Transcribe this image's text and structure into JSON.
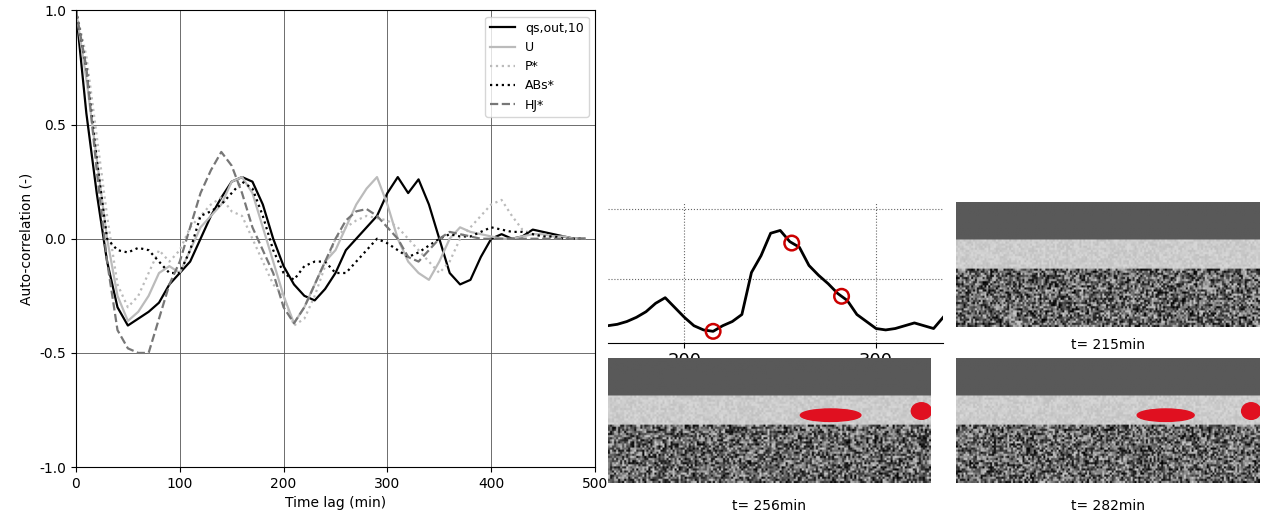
{
  "chart_data": [
    {
      "type": "line",
      "x_label": "Time lag (min)",
      "y_label": "Auto-correlation (-)",
      "xlim": [
        0,
        500
      ],
      "xticks": [
        0,
        100,
        200,
        300,
        400,
        500
      ],
      "ylim": [
        -1,
        1
      ],
      "yticks": [
        {
          "value": -1,
          "label": "-1.0"
        },
        {
          "value": -0.5,
          "label": "-0.5"
        },
        {
          "value": 0,
          "label": "0.0"
        },
        {
          "value": 0.5,
          "label": "0.5"
        },
        {
          "value": 1,
          "label": "1.0"
        }
      ],
      "grid": true,
      "legend": "upper right",
      "x": [
        0,
        10,
        20,
        30,
        40,
        50,
        60,
        70,
        80,
        90,
        100,
        110,
        120,
        130,
        140,
        150,
        160,
        170,
        180,
        190,
        200,
        210,
        220,
        230,
        240,
        250,
        260,
        270,
        280,
        290,
        300,
        310,
        320,
        330,
        340,
        350,
        360,
        370,
        380,
        390,
        400,
        410,
        420,
        430,
        440,
        450,
        460,
        470,
        480,
        490
      ],
      "series": [
        {
          "name": "qs,out,10",
          "color": "#000000",
          "line_style": "solid",
          "values": [
            1.0,
            0.55,
            0.2,
            -0.1,
            -0.3,
            -0.38,
            -0.35,
            -0.32,
            -0.28,
            -0.2,
            -0.15,
            -0.1,
            0.0,
            0.1,
            0.18,
            0.25,
            0.27,
            0.25,
            0.15,
            0.0,
            -0.12,
            -0.2,
            -0.25,
            -0.27,
            -0.22,
            -0.15,
            -0.05,
            0.0,
            0.05,
            0.1,
            0.2,
            0.27,
            0.2,
            0.26,
            0.15,
            0.0,
            -0.15,
            -0.2,
            -0.18,
            -0.08,
            0.0,
            0.02,
            0.0,
            0.01,
            0.04,
            0.03,
            0.02,
            0.01,
            0.0,
            0.0
          ]
        },
        {
          "name": "U",
          "color": "#bbbbbb",
          "line_style": "solid",
          "values": [
            1.0,
            0.7,
            0.35,
            0.0,
            -0.25,
            -0.36,
            -0.32,
            -0.25,
            -0.15,
            -0.12,
            -0.15,
            -0.05,
            0.05,
            0.1,
            0.15,
            0.25,
            0.27,
            0.2,
            0.05,
            -0.1,
            -0.25,
            -0.37,
            -0.3,
            -0.2,
            -0.1,
            -0.05,
            0.05,
            0.15,
            0.22,
            0.27,
            0.15,
            0.0,
            -0.1,
            -0.15,
            -0.18,
            -0.1,
            0.0,
            0.05,
            0.03,
            0.02,
            0.01,
            0.0,
            0.0,
            0.01,
            0.02,
            0.02,
            0.01,
            0.01,
            0.0,
            0.0
          ]
        },
        {
          "name": "P*",
          "color": "#bbbbbb",
          "line_style": "dotted",
          "values": [
            1.0,
            0.8,
            0.45,
            0.1,
            -0.2,
            -0.3,
            -0.25,
            -0.15,
            -0.05,
            -0.1,
            -0.05,
            0.05,
            0.1,
            0.15,
            0.18,
            0.12,
            0.1,
            0.0,
            -0.1,
            -0.2,
            -0.25,
            -0.38,
            -0.35,
            -0.25,
            -0.12,
            0.0,
            0.05,
            0.08,
            0.1,
            0.09,
            0.08,
            0.05,
            0.0,
            -0.05,
            -0.1,
            -0.15,
            -0.1,
            0.0,
            0.05,
            0.1,
            0.15,
            0.17,
            0.1,
            0.04,
            0.02,
            0.01,
            0.0,
            0.0,
            0.0,
            0.0
          ]
        },
        {
          "name": "ABs*",
          "color": "#000000",
          "line_style": "dotted",
          "values": [
            1.0,
            0.75,
            0.35,
            0.0,
            -0.05,
            -0.06,
            -0.04,
            -0.05,
            -0.1,
            -0.15,
            -0.15,
            -0.05,
            0.1,
            0.12,
            0.15,
            0.2,
            0.25,
            0.22,
            0.1,
            -0.05,
            -0.15,
            -0.18,
            -0.12,
            -0.1,
            -0.1,
            -0.15,
            -0.15,
            -0.1,
            -0.05,
            0.0,
            -0.02,
            -0.05,
            -0.08,
            -0.06,
            -0.03,
            0.0,
            0.02,
            0.01,
            0.01,
            0.03,
            0.05,
            0.04,
            0.03,
            0.03,
            0.02,
            0.01,
            0.01,
            0.0,
            0.0,
            0.0
          ]
        },
        {
          "name": "HJ*",
          "color": "#777777",
          "line_style": "dashed",
          "values": [
            1.0,
            0.75,
            0.3,
            -0.1,
            -0.4,
            -0.48,
            -0.5,
            -0.5,
            -0.35,
            -0.2,
            -0.1,
            0.05,
            0.2,
            0.3,
            0.38,
            0.32,
            0.2,
            0.05,
            -0.05,
            -0.15,
            -0.3,
            -0.37,
            -0.3,
            -0.2,
            -0.1,
            0.0,
            0.08,
            0.12,
            0.13,
            0.1,
            0.05,
            0.0,
            -0.08,
            -0.1,
            -0.05,
            0.0,
            0.03,
            0.02,
            0.01,
            0.0,
            0.0,
            0.0,
            0.0,
            0.0,
            0.0,
            0.0,
            0.0,
            0.0,
            0.0,
            0.0
          ]
        }
      ]
    },
    {
      "type": "line",
      "xlim": [
        160,
        335
      ],
      "xticks": [
        200,
        300
      ],
      "ylim": [
        0,
        1
      ],
      "yticks": [
        0.45,
        0.95
      ],
      "grid": true,
      "tick_labels": "x",
      "x": [
        160,
        165,
        170,
        175,
        180,
        185,
        190,
        195,
        200,
        205,
        210,
        215,
        220,
        225,
        230,
        235,
        240,
        245,
        250,
        255,
        260,
        265,
        270,
        275,
        280,
        285,
        290,
        295,
        300,
        305,
        310,
        315,
        320,
        325,
        330,
        335
      ],
      "series": [
        {
          "type": "line",
          "color": "#000000",
          "line_style": "solid",
          "values": [
            0.12,
            0.13,
            0.15,
            0.18,
            0.22,
            0.28,
            0.32,
            0.25,
            0.18,
            0.12,
            0.09,
            0.08,
            0.12,
            0.15,
            0.2,
            0.5,
            0.62,
            0.78,
            0.8,
            0.72,
            0.68,
            0.55,
            0.48,
            0.42,
            0.35,
            0.3,
            0.2,
            0.15,
            0.1,
            0.09,
            0.1,
            0.12,
            0.14,
            0.12,
            0.1,
            0.18
          ]
        },
        {
          "type": "scatter",
          "color": "#cc0000",
          "marker": "o",
          "x": [
            215,
            256,
            282
          ],
          "values": [
            0.08,
            0.71,
            0.33
          ]
        }
      ]
    }
  ],
  "images": [
    {
      "caption": "t= 215min"
    },
    {
      "caption": "t= 256min"
    },
    {
      "caption": "t= 282min"
    }
  ]
}
